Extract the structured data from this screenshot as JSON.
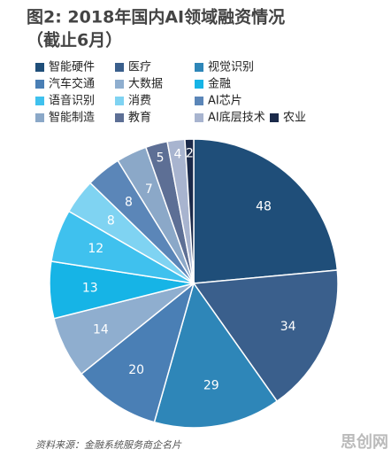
{
  "chart_data": {
    "type": "pie",
    "title": "图2: 2018年国内AI领域融资情况",
    "subtitle": "（截止6月）",
    "source": "资料来源：金融系统服务商企名片",
    "watermark": "思创网",
    "categories": [
      "智能硬件",
      "医疗",
      "视觉识别",
      "汽车交通",
      "大数据",
      "金融",
      "语音识别",
      "消费",
      "AI芯片",
      "智能制造",
      "教育",
      "AI底层技术",
      "农业"
    ],
    "values": [
      48,
      34,
      29,
      20,
      14,
      13,
      12,
      8,
      8,
      7,
      5,
      4,
      2
    ],
    "colors": [
      "#1f4e79",
      "#3a5f8c",
      "#2e86b8",
      "#4a7fb5",
      "#8faecf",
      "#16b4e6",
      "#3fc1ee",
      "#7fd3f2",
      "#5b86b8",
      "#8ba8c8",
      "#5d6f95",
      "#a8b4cf",
      "#1b2a4a"
    ]
  }
}
